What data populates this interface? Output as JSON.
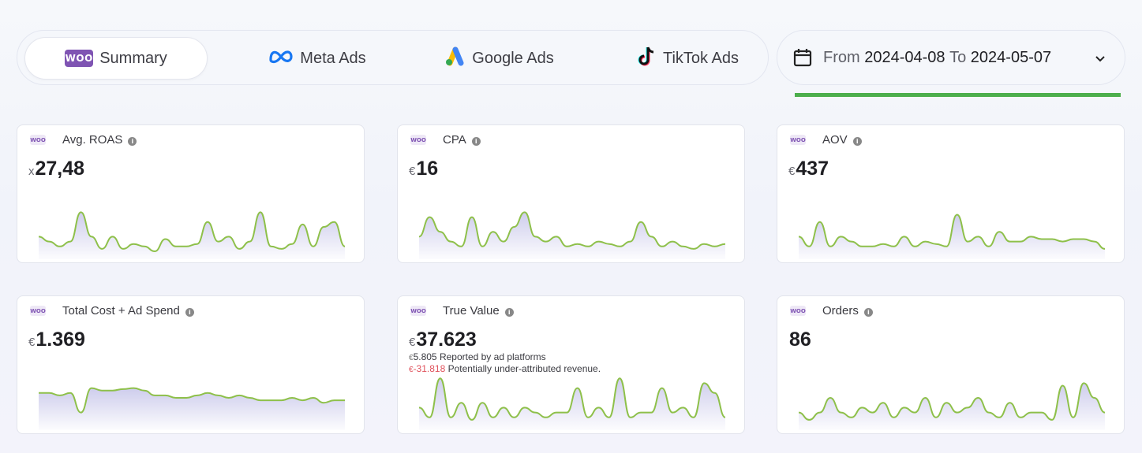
{
  "tabs": [
    {
      "label": "Summary",
      "icon": "woocommerce-icon",
      "logo_text": "WOO",
      "active": true
    },
    {
      "label": "Meta Ads",
      "icon": "meta-icon"
    },
    {
      "label": "Google Ads",
      "icon": "google-ads-icon"
    },
    {
      "label": "TikTok Ads",
      "icon": "tiktok-icon"
    }
  ],
  "date_range": {
    "from_label": "From",
    "from": "2024-04-08",
    "to_label": "To",
    "to": "2024-05-07",
    "underline_color": "#4cae4c"
  },
  "colors": {
    "accent_purple": "#7f54b3",
    "line_green": "#8ec04a",
    "fill_lavender": "#c8c7ea",
    "negative": "#e0525c"
  },
  "cards": [
    {
      "logo_text": "WOO",
      "title": "Avg. ROAS",
      "prefix": "x",
      "value": "27,48",
      "series": [
        0.3,
        0.2,
        0.1,
        0.2,
        0.8,
        0.3,
        0.05,
        0.3,
        0.05,
        0.15,
        0.1,
        0.0,
        0.25,
        0.1,
        0.1,
        0.15,
        0.6,
        0.2,
        0.3,
        0.05,
        0.2,
        0.8,
        0.1,
        0.05,
        0.15,
        0.55,
        0.1,
        0.5,
        0.6,
        0.1
      ]
    },
    {
      "logo_text": "WOO",
      "title": "CPA",
      "prefix": "€",
      "value": "16",
      "series": [
        0.3,
        0.7,
        0.4,
        0.2,
        0.1,
        0.7,
        0.1,
        0.4,
        0.2,
        0.5,
        0.8,
        0.3,
        0.2,
        0.3,
        0.1,
        0.15,
        0.1,
        0.2,
        0.15,
        0.1,
        0.2,
        0.6,
        0.3,
        0.1,
        0.2,
        0.1,
        0.05,
        0.15,
        0.1,
        0.15
      ]
    },
    {
      "logo_text": "WOO",
      "title": "AOV",
      "prefix": "€",
      "value": "437",
      "series": [
        0.3,
        0.1,
        0.6,
        0.1,
        0.3,
        0.2,
        0.1,
        0.1,
        0.15,
        0.1,
        0.3,
        0.1,
        0.2,
        0.15,
        0.1,
        0.75,
        0.2,
        0.3,
        0.1,
        0.4,
        0.2,
        0.2,
        0.3,
        0.25,
        0.25,
        0.2,
        0.25,
        0.25,
        0.2,
        0.05
      ]
    },
    {
      "logo_text": "WOO",
      "title": "Total Cost + Ad Spend",
      "prefix": "€",
      "value": "1.369",
      "series": [
        0.6,
        0.6,
        0.55,
        0.6,
        0.2,
        0.7,
        0.65,
        0.65,
        0.68,
        0.7,
        0.65,
        0.55,
        0.55,
        0.5,
        0.5,
        0.55,
        0.6,
        0.55,
        0.5,
        0.55,
        0.5,
        0.45,
        0.45,
        0.45,
        0.5,
        0.45,
        0.5,
        0.4,
        0.45,
        0.45
      ]
    },
    {
      "logo_text": "WOO",
      "title": "True Value",
      "prefix": "€",
      "value": "37.623",
      "sub1_currency": "€",
      "sub1_value": "5.805",
      "sub1_text": "Reported by ad platforms",
      "sub2_currency": "€",
      "sub2_value": "-31.818",
      "sub2_text": "Potentially under-attributed revenue.",
      "series": [
        0.3,
        0.1,
        0.9,
        0.1,
        0.4,
        0.05,
        0.4,
        0.1,
        0.3,
        0.1,
        0.3,
        0.2,
        0.1,
        0.2,
        0.2,
        0.7,
        0.1,
        0.3,
        0.1,
        0.9,
        0.1,
        0.2,
        0.2,
        0.7,
        0.2,
        0.3,
        0.1,
        0.8,
        0.6,
        0.1
      ]
    },
    {
      "logo_text": "WOO",
      "title": "Orders",
      "prefix": "",
      "value": "86",
      "series": [
        0.2,
        0.05,
        0.2,
        0.5,
        0.2,
        0.1,
        0.3,
        0.2,
        0.4,
        0.1,
        0.3,
        0.2,
        0.5,
        0.1,
        0.4,
        0.2,
        0.3,
        0.5,
        0.2,
        0.1,
        0.4,
        0.1,
        0.2,
        0.2,
        0.05,
        0.75,
        0.1,
        0.8,
        0.5,
        0.2
      ]
    }
  ]
}
